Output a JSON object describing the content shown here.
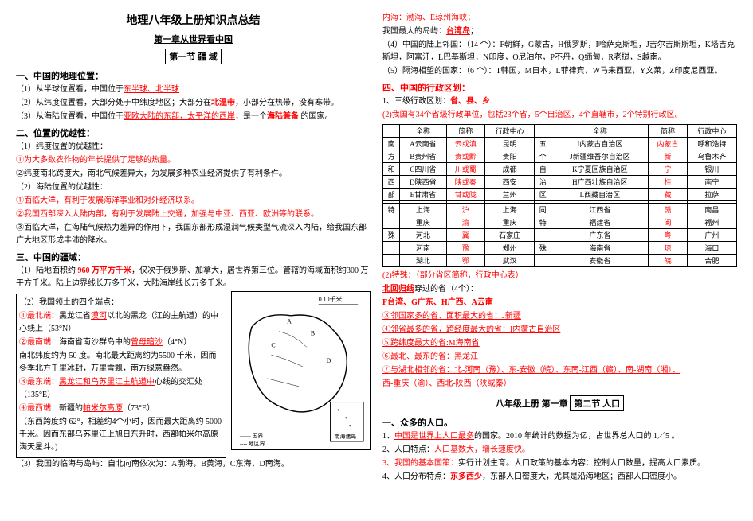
{
  "titles": {
    "main": "地理八年级上册知识点总结",
    "chapter": "第一章从世界看中国",
    "section1": "第一节 疆 域",
    "section2_prefix": "八年级上册 第一章",
    "section2": "第二节 人口"
  },
  "left": {
    "h1_1": "一、中国的地理位置：",
    "l1": "（1）从半球位置看，中国位于",
    "l1_red1": "东半球、北半球",
    "l2": "（2）从纬度位置看，大部分处于中纬度地区；大部分在",
    "l2_red": "北温带",
    "l2b": "，小部分在热带，没有寒带。",
    "l3": "（3）从海陆位置看，中国位于",
    "l3_red1": "亚欧大陆的东部，太平洋的西岸",
    "l3b": "，是一个",
    "l3_red2": "海陆兼备",
    "l3c": " 的国家。",
    "h1_2": "二、位置的优越性：",
    "l4": "（1）纬度位置的优越性：",
    "l5_red": "①为大多数农作物的年长提供了足够的热量。",
    "l6": "②纬度南北跨度大，南北气候差异大，为发展多种农业经济提供了有利条件。",
    "l7": "（2）海陆位置的优越性：",
    "l8_red": "①面临大洋，有利于发展海洋事业和对外经济联系。",
    "l9_red": "②我国西部深入大陆内部，有利于发展陆上交通，加强与中亚、西亚、欧洲等的联系。",
    "l10": "③面临大洋，在海陆气候热力差异的作用下，我国东部形成湿润气候类型气流深入内陆，给我国东部广大地区形成丰沛的降水。",
    "h1_3": "三、中国的疆域：",
    "l11a": "（1）陆地面积约 ",
    "l11_red": "960 万平方千米",
    "l11b": "，仅次于俄罗斯、加拿大，居世界第三位。管辖的海域面积约300 万平方千米。陆上边界线长万多千米，大陆海岸线长万多千米。",
    "l12": "（2）我国领土的四个端点：",
    "l13a_red": "①最北端：",
    "l13b": "黑龙江省",
    "l13c_red": "漠河",
    "l13d": "以北的黑龙（江的主航道）的中心线上（53°N）",
    "l14a_red": "②最南端：",
    "l14b": "海南省南沙群岛中的",
    "l14c_red": "曾母暗沙",
    "l14d": "（4°N）",
    "l15": "南北纬度约为 50 度。南北最大距离约为5500 千米，因而冬季北方千里冰封，万里雪飘，南方绿意盎然。",
    "l16a_red": "③最东端：",
    "l16b_red": "黑龙江和乌苏里江主航道中",
    "l16c": "心线的交汇处（135°E）",
    "l17a_red": "④最西端：",
    "l17b": "新疆的",
    "l17c_red": "帕米尔高原",
    "l17d": "（73°E）",
    "l18": "（东西跨度约 62°，相差约4个小时，因而最大距离约 5000 千米。因而东部乌苏里江上旭日东升时，西部帕米尔高原满天星斗。)",
    "l19": "（3）我国的临海与岛屿：自北向南依次为：A渤海，B黄海，C东海，D南海。",
    "map_caption_se": "南海诸岛",
    "map_legend1": "—— 国界",
    "map_legend2": "---- 地区界",
    "map_scale": "0   10千米"
  },
  "right": {
    "l1a_red": "内海：渤海、E琼州海峡；",
    "l2a": "我国最大的岛屿：",
    "l2b_red": "台湾岛",
    "l2c": "；",
    "l3": "（4）中国的陆上邻国：（14 个）：F朝鲜，G蒙古，H俄罗斯，I哈萨克斯坦，J吉尔吉斯斯坦，K塔吉克斯坦，阿富汗，L巴基斯坦，N印度，O尼泊尔，P不丹，Q缅甸，R老挝，S越南。",
    "l4": "（5）隔海相望的国家：（6 个）：T韩国，M日本，L菲律宾，W马来西亚，Y文莱，Z印度尼西亚。",
    "h1_4_red": "四、中国的行政区划：",
    "l5": "1、三级行政区划：",
    "l5_red": "省、县、乡",
    "l6_red": "(2)我国有34个省级行政单位，包括23个省，5个自治区，4个直辖市，2个特别行政区。",
    "table": {
      "headers": [
        "",
        "全称",
        "简称",
        "行政中心",
        "",
        "全称",
        "简称",
        "行政中心"
      ],
      "rows": [
        [
          "南",
          "A云南省",
          "云或滇",
          "昆明",
          "五",
          "I内蒙古自治区",
          "内蒙古",
          "呼和浩特"
        ],
        [
          "方",
          "B贵州省",
          "贵或黔",
          "贵阳",
          "个",
          "J新疆维吾尔自治区",
          "新",
          "乌鲁木齐"
        ],
        [
          "和",
          "C四川省",
          "川或蜀",
          "成都",
          "自",
          "K宁夏回族自治区",
          "宁",
          "银川"
        ],
        [
          "西",
          "D陕西省",
          "陕或秦",
          "西安",
          "治",
          "H广西壮族自治区",
          "桂",
          "南宁"
        ],
        [
          "部",
          "E甘肃省",
          "甘或陇",
          "兰州",
          "区",
          "L西藏自治区",
          "藏",
          "拉萨"
        ],
        [
          "",
          "",
          "",
          "",
          "",
          "",
          "",
          ""
        ],
        [
          "特",
          "上海",
          "沪",
          "上海",
          "同",
          "江西省",
          "赣",
          "南昌"
        ],
        [
          "",
          "重庆",
          "渝",
          "重庆",
          "特",
          "福建省",
          "闽",
          "福州"
        ],
        [
          "殊",
          "河北",
          "冀",
          "石家庄",
          "",
          "广东省",
          "粤",
          "广州"
        ],
        [
          "",
          "河南",
          "豫",
          "郑州",
          "殊",
          "海南省",
          "琼",
          "海口"
        ],
        [
          "",
          "湖北",
          "鄂",
          "武汉",
          "",
          "安徽省",
          "皖",
          "合肥"
        ]
      ]
    },
    "l7_red": "(2)特殊：（部分省区简称，行政中心表）",
    "l8a": "  ",
    "l8b_red": "北回归线",
    "l8c": "穿过的省（4个）：",
    "l9_red": "  F台湾、G广东、H广西、A云南",
    "l10_red": "③邻国家多的省、面积最大的省：J新疆",
    "l11_red": "④邻省最多的省，跨经度最大的省：I内蒙古自治区",
    "l12_red": "⑤跨纬度最大的省:M海南省",
    "l13_red": "⑥最北、最东的省：黑龙江",
    "l14a_red": "⑦与湖北相邻的省：北-河南（豫）、东-安徽（皖）、东南-江西（赣）、南-湖南（湘）、",
    "l14b_red": "西-重庆（渝）、西北-陕西（陕或秦）",
    "h1_5": "一、众多的人口。",
    "l15a": "1、",
    "l15b_red": "中国是世界上人口最多",
    "l15c": "的国家。2010 年统计的数据为亿，占世界总人口的 1／5 。",
    "l16a": "2、人口特点：",
    "l16b_red": "人口基数大，增长速度快。",
    "l17a_red": "3、我国的基本国策：",
    "l17b": "实行计划生育。人口政策的基本内容：控制人口数量，提高人口素质。",
    "l18a": "4、人口分布特点：",
    "l18b_red": "东多西少",
    "l18c": "，东部人口密度大，尤其是沿海地区；西部人口密度小。"
  }
}
